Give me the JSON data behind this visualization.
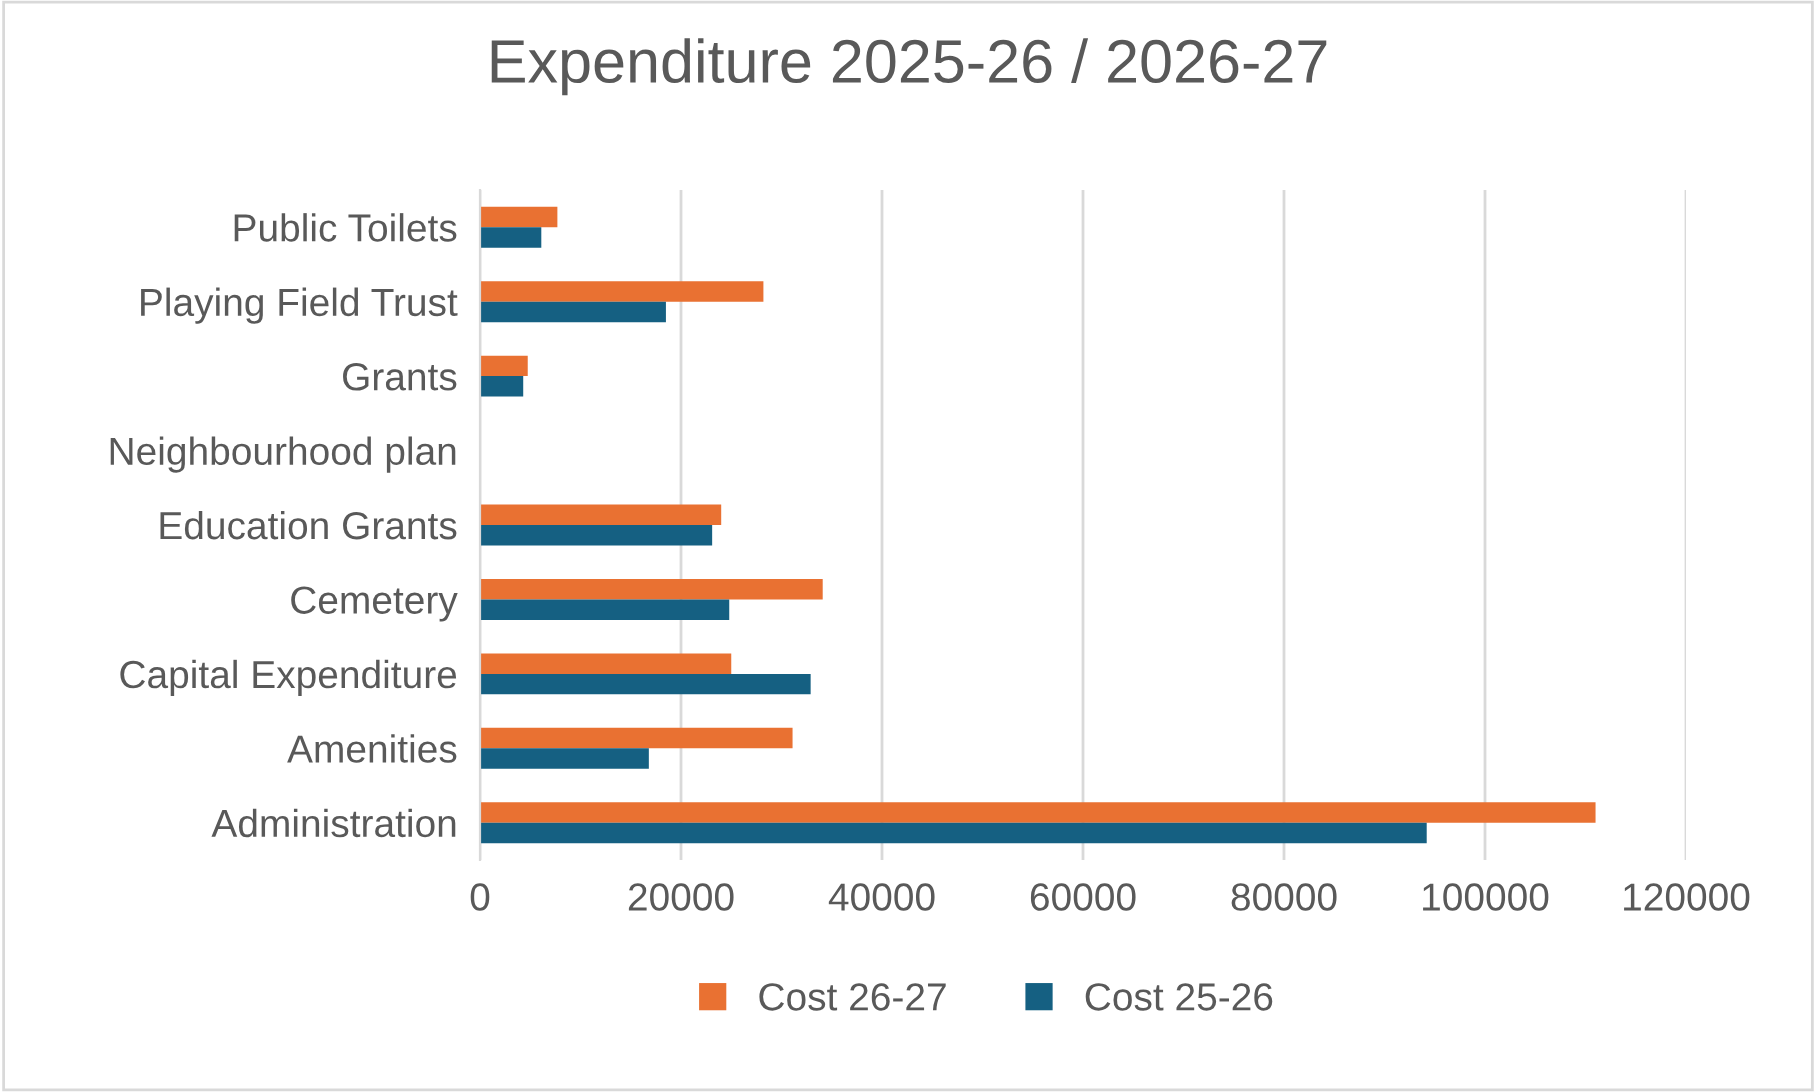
{
  "chart_data": {
    "type": "bar",
    "orientation": "horizontal",
    "title": "Expenditure 2025-26 / 2026-27",
    "categories": [
      "Public Toilets",
      "Playing Field Trust",
      "Grants",
      "Neighbourhood plan",
      "Education Grants",
      "Cemetery",
      "Capital Expenditure",
      "Amenities",
      "Administration"
    ],
    "series": [
      {
        "name": "Cost 26-27",
        "color": "#e97132",
        "values": [
          7700,
          28200,
          4750,
          0,
          24000,
          34100,
          25000,
          31100,
          111000
        ]
      },
      {
        "name": "Cost 25-26",
        "color": "#156082",
        "values": [
          6100,
          18500,
          4300,
          0,
          23100,
          24800,
          32900,
          16800,
          94200
        ]
      }
    ],
    "xlim": [
      0,
      120000
    ],
    "xticks": [
      0,
      20000,
      40000,
      60000,
      80000,
      100000,
      120000
    ],
    "grid": "x",
    "legend": "bottom"
  }
}
